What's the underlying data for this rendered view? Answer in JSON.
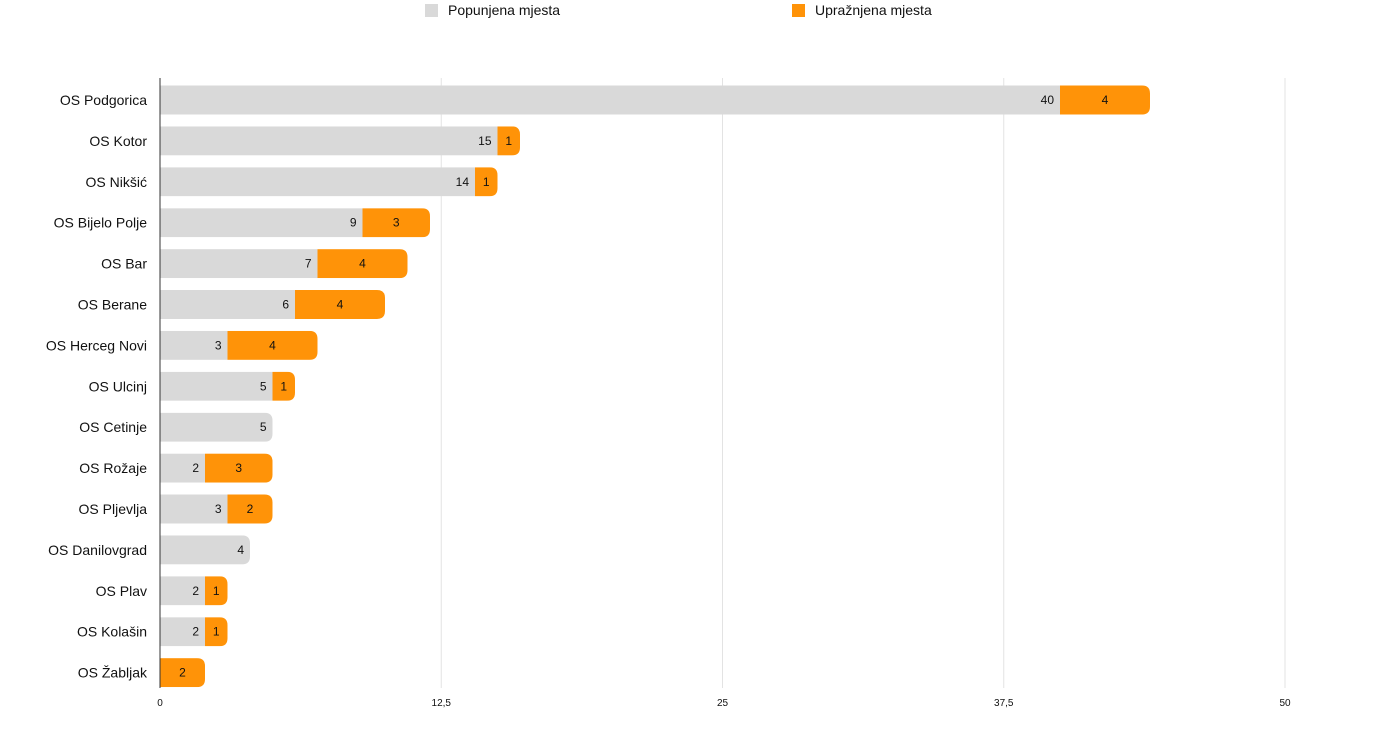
{
  "chart_data": {
    "type": "bar",
    "orientation": "horizontal",
    "stacked": true,
    "categories": [
      "OS Podgorica",
      "OS Kotor",
      "OS Nikšić",
      "OS Bijelo Polje",
      "OS Bar",
      "OS Berane",
      "OS Herceg Novi",
      "OS Ulcinj",
      "OS Cetinje",
      "OS Rožaje",
      "OS Pljevlja",
      "OS Danilovgrad",
      "OS Plav",
      "OS Kolašin",
      "OS Žabljak"
    ],
    "series": [
      {
        "name": "Popunjena mjesta",
        "color": "#d9d9d9",
        "values": [
          40,
          15,
          14,
          9,
          7,
          6,
          3,
          5,
          5,
          2,
          3,
          4,
          2,
          2,
          0
        ]
      },
      {
        "name": "Upražnjena mjesta",
        "color": "#ff9308",
        "values": [
          4,
          1,
          1,
          3,
          4,
          4,
          4,
          1,
          0,
          3,
          2,
          0,
          1,
          1,
          2
        ]
      }
    ],
    "xlim": [
      0,
      50
    ],
    "xticks": [
      "0",
      "12,5",
      "25",
      "37,5",
      "50"
    ],
    "grid": true,
    "legend_position": "top"
  }
}
